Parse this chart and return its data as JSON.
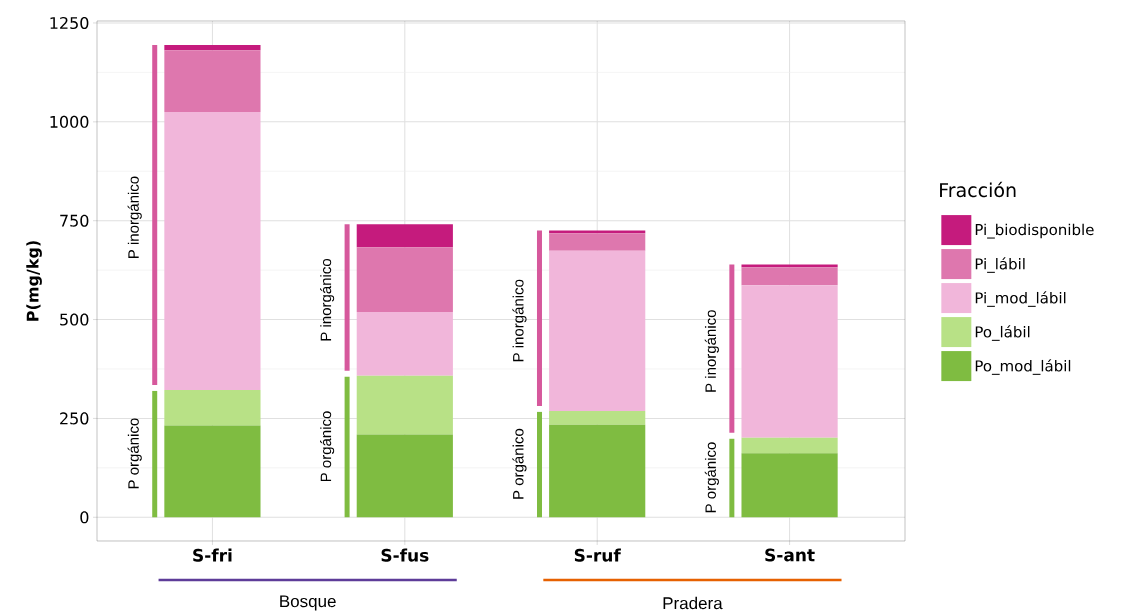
{
  "chart_data": {
    "type": "bar",
    "stacked": true,
    "ylabel": "P(mg/kg)",
    "legend_title": "Fracción",
    "categories": [
      "S-fri",
      "S-fus",
      "S-ruf",
      "S-ant"
    ],
    "series": [
      {
        "name": "Po_mod_lábil",
        "color": "#7fbc41",
        "values": [
          232,
          209,
          234,
          162
        ]
      },
      {
        "name": "Po_lábil",
        "color": "#b8e186",
        "values": [
          90,
          149,
          35,
          39
        ]
      },
      {
        "name": "Pi_mod_lábil",
        "color": "#f1b6da",
        "values": [
          703,
          161,
          405,
          386
        ]
      },
      {
        "name": "Pi_lábil",
        "color": "#de77ae",
        "values": [
          156,
          164,
          44,
          45
        ]
      },
      {
        "name": "Pi_biodisponible",
        "color": "#c51b7d",
        "values": [
          13,
          58,
          7,
          7
        ]
      }
    ],
    "ylim": [
      -60,
      1255
    ],
    "yticks": [
      0,
      250,
      500,
      750,
      1000,
      1250
    ],
    "grid": true,
    "legend": "right",
    "annotations": [
      "P orgánico",
      "P inorgánico",
      "P orgánico",
      "P inorgánico",
      "P orgánico",
      "P inorgánico",
      "P orgánico",
      "P inorgánico",
      "Bosque",
      "Pradera"
    ]
  }
}
